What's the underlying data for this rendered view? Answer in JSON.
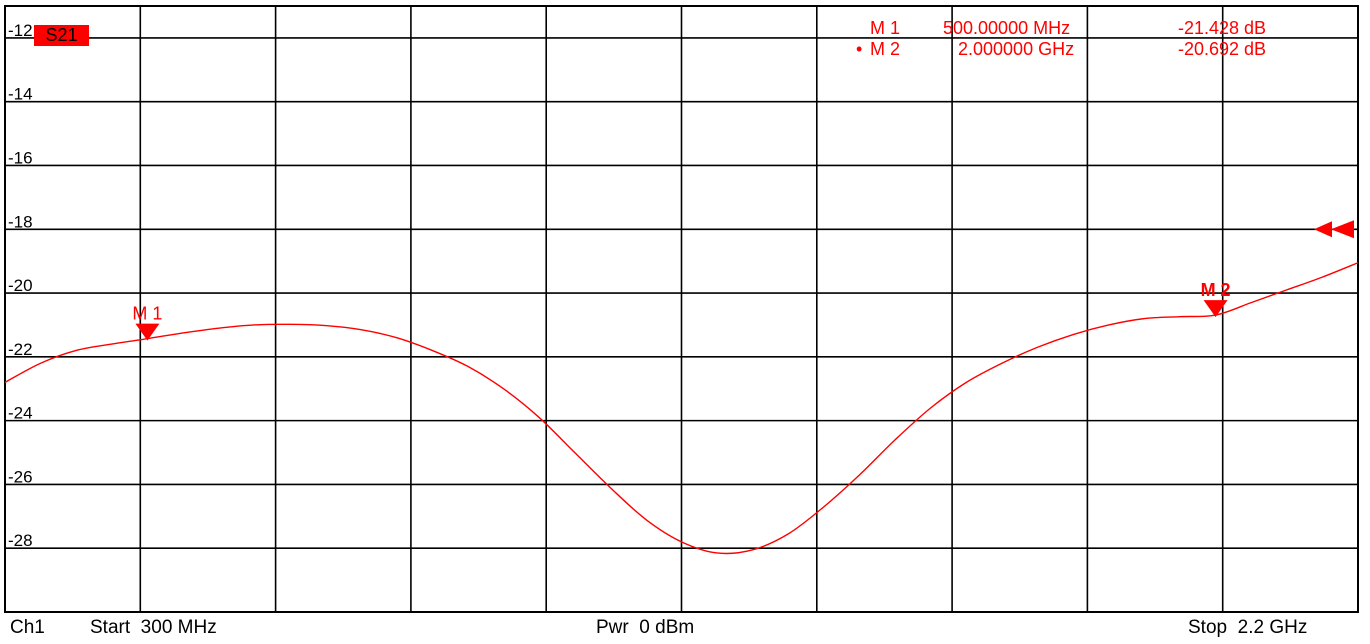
{
  "trace_label": "S21",
  "colors": {
    "trace": "#ff0000",
    "grid": "#000000",
    "background": "#ffffff",
    "marker": "#ff0000"
  },
  "markers": [
    {
      "name": "M 1",
      "active": false,
      "freq_text": "500.00000 MHz",
      "value_text": "-21.428 dB",
      "label": "M 1",
      "x_mhz": 500,
      "y_db": -21.428
    },
    {
      "name": "M 2",
      "active": true,
      "freq_text": "2.000000 GHz",
      "value_text": "-20.692 dB",
      "label": "M 2",
      "x_mhz": 2000,
      "y_db": -20.692
    }
  ],
  "reference_level_db": -18,
  "footer": {
    "channel": "Ch1",
    "start": "Start  300 MHz",
    "power": "Pwr  0 dBm",
    "stop": "Stop  2.2 GHz"
  },
  "chart_data": {
    "type": "line",
    "title": "",
    "xlabel": "",
    "ylabel": "",
    "xlim": [
      300,
      2200
    ],
    "ylim": [
      -30,
      -11
    ],
    "yticks": [
      -12,
      -14,
      -16,
      -18,
      -20,
      -22,
      -24,
      -26,
      -28
    ],
    "ytick_labels": [
      "-12",
      "-14",
      "-16",
      "-18",
      "-20",
      "-22",
      "-24",
      "-26",
      "-28"
    ],
    "x_divisions": 10,
    "grid": true,
    "series": [
      {
        "x": [
          300,
          350,
          400,
          450,
          500,
          550,
          600,
          650,
          700,
          750,
          800,
          850,
          900,
          950,
          1000,
          1050,
          1100,
          1150,
          1200,
          1250,
          1300,
          1350,
          1400,
          1450,
          1500,
          1550,
          1600,
          1650,
          1700,
          1750,
          1800,
          1850,
          1900,
          1950,
          2000,
          2050,
          2100,
          2150,
          2200
        ],
        "y": [
          -22.8,
          -22.2,
          -21.8,
          -21.6,
          -21.43,
          -21.25,
          -21.1,
          -21.0,
          -20.98,
          -21.02,
          -21.15,
          -21.4,
          -21.8,
          -22.3,
          -23.0,
          -23.9,
          -25.0,
          -26.1,
          -27.1,
          -27.8,
          -28.15,
          -28.05,
          -27.55,
          -26.7,
          -25.7,
          -24.6,
          -23.6,
          -22.8,
          -22.2,
          -21.7,
          -21.3,
          -21.0,
          -20.8,
          -20.74,
          -20.69,
          -20.3,
          -19.9,
          -19.5,
          -19.05
        ]
      }
    ]
  }
}
